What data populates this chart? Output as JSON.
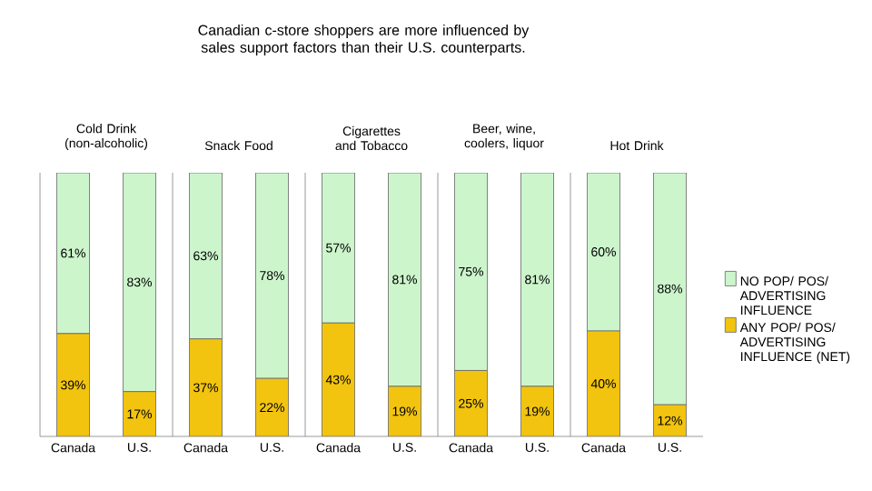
{
  "chart_data": [
    {
      "type": "bar",
      "stacked": true,
      "title": "Cold Drink (non-alcoholic)",
      "annotations": [
        "Canadian c-store shoppers are more influenced by sales support factors than their U.S. counterparts."
      ],
      "categories": [
        "Canada",
        "U.S."
      ],
      "series": [
        {
          "color": "#f2c40f",
          "values": [
            39,
            17
          ],
          "value_labels": [
            "39%",
            "17%"
          ]
        },
        {
          "color": "#ccf5cc",
          "values": [
            61,
            83
          ],
          "value_labels": [
            "61%",
            "83%"
          ]
        }
      ]
    },
    {
      "type": "bar",
      "stacked": true,
      "title": "Snack Food",
      "categories": [
        "Canada",
        "U.S."
      ],
      "series": [
        {
          "color": "#f2c40f",
          "values": [
            37,
            22
          ],
          "value_labels": [
            "37%",
            "22%"
          ]
        },
        {
          "color": "#ccf5cc",
          "values": [
            63,
            78
          ],
          "value_labels": [
            "63%",
            "78%"
          ]
        }
      ]
    },
    {
      "type": "bar",
      "stacked": true,
      "title": "Cigarettes and Tobacco",
      "categories": [
        "Canada",
        "U.S."
      ],
      "series": [
        {
          "color": "#f2c40f",
          "values": [
            43,
            19
          ],
          "value_labels": [
            "43%",
            "19%"
          ]
        },
        {
          "color": "#ccf5cc",
          "values": [
            57,
            81
          ],
          "value_labels": [
            "57%",
            "81%"
          ]
        }
      ]
    },
    {
      "type": "bar",
      "stacked": true,
      "title": "Beer, wine, coolers, liquor",
      "categories": [
        "Canada",
        "U.S."
      ],
      "series": [
        {
          "color": "#f2c40f",
          "values": [
            25,
            19
          ],
          "value_labels": [
            "25%",
            "19%"
          ]
        },
        {
          "color": "#ccf5cc",
          "values": [
            75,
            81
          ],
          "value_labels": [
            "75%",
            "81%"
          ]
        }
      ]
    },
    {
      "type": "bar",
      "stacked": true,
      "legend": "right",
      "title": "Hot Drink",
      "categories": [
        "Canada",
        "U.S."
      ],
      "series": [
        {
          "name": "ANY POP/ POS/ ADVERTISING INFLUENCE (NET)",
          "color": "#f2c40f",
          "values": [
            40,
            12
          ],
          "value_labels": [
            "40%",
            "12%"
          ]
        },
        {
          "name": "NO POP/ POS/ ADVERTISING INFLUENCE",
          "color": "#ccf5cc",
          "values": [
            60,
            88
          ],
          "value_labels": [
            "60%",
            "88%"
          ]
        }
      ]
    }
  ]
}
